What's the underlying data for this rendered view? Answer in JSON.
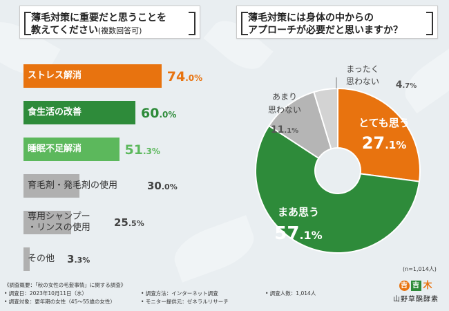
{
  "left": {
    "title_line1": "薄毛対策に重要だと思うことを",
    "title_line2": "教えてください",
    "title_note": "(複数回答可)"
  },
  "right": {
    "title_line1": "薄毛対策には身体の中からの",
    "title_line2": "アプローチが必要だと思いますか？",
    "n_label": "(n=1,014人)"
  },
  "chart_data": [
    {
      "type": "bar",
      "orientation": "horizontal",
      "title": "薄毛対策に重要だと思うことを教えてください(複数回答可)",
      "categories": [
        "ストレス解消",
        "食生活の改善",
        "睡眠不足解消",
        "育毛剤・発毛剤の使用",
        "専用シャンプー・リンスの使用",
        "その他"
      ],
      "values": [
        74.0,
        60.0,
        51.3,
        30.0,
        25.5,
        3.3
      ],
      "value_labels": [
        {
          "int": "74",
          "dec": ".0%"
        },
        {
          "int": "60",
          "dec": ".0%"
        },
        {
          "int": "51",
          "dec": ".3%"
        },
        {
          "int": "30",
          "dec": ".0%"
        },
        {
          "int": "25",
          "dec": ".5%"
        },
        {
          "int": "3",
          "dec": ".3%"
        }
      ],
      "colors": [
        "#e8730f",
        "#2e8b3a",
        "#5cb85c",
        "#b0b0b0",
        "#b0b0b0",
        "#b0b0b0"
      ],
      "value_colors": [
        "#e8730f",
        "#2e8b3a",
        "#5cb85c",
        "#444444",
        "#444444",
        "#444444"
      ],
      "unit": "%",
      "xlim": [
        0,
        100
      ]
    },
    {
      "type": "pie",
      "variant": "donut",
      "title": "薄毛対策には身体の中からのアプローチが必要だと思いますか？",
      "slices": [
        {
          "label": "とても思う",
          "value": 27.1,
          "int": "27",
          "dec": ".1%",
          "color": "#e8730f"
        },
        {
          "label": "まあ思う",
          "value": 57.1,
          "int": "57",
          "dec": ".1%",
          "color": "#2e8b3a"
        },
        {
          "label": "あまり思わない",
          "value": 11.1,
          "int": "11",
          "dec": ".1%",
          "color": "#b5b5b5"
        },
        {
          "label": "まったく思わない",
          "value": 4.7,
          "int": "4",
          "dec": ".7%",
          "color": "#d3d3d3"
        }
      ],
      "label_lines": {
        "とても思う": [
          "とても思う"
        ],
        "まあ思う": [
          "まあ思う"
        ],
        "あまり思わない": [
          "あまり",
          "思わない"
        ],
        "まったく思わない": [
          "まったく",
          "思わない"
        ]
      }
    }
  ],
  "footer": {
    "line1": "《調査概要：「秋の女性の毛髪事情」に関する調査》",
    "line2": "• 調査日：2023年10月11日（水）",
    "line3": "• 調査対象：更年期の女性（45～55歳の女性）",
    "line4": "• 調査方法：インターネット調査",
    "line5": "• モニター提供元：ゼネラルリサーチ",
    "line6": "• 調査人数：1,014人"
  },
  "logo": {
    "text": "山野草醗酵素",
    "glyphs": [
      "吉",
      "吉",
      "木"
    ]
  }
}
